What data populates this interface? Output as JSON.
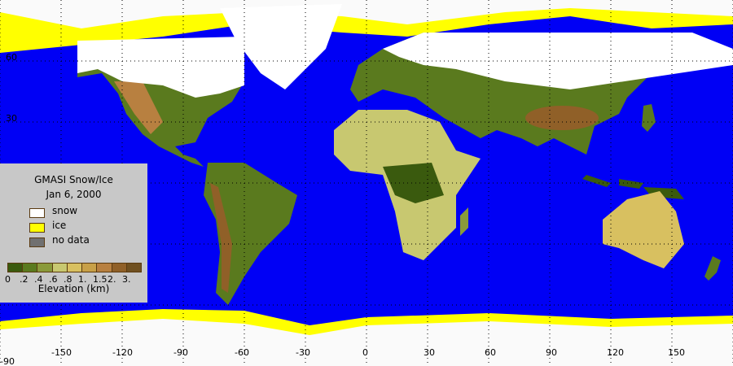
{
  "legend": {
    "title": "GMASI Snow/Ice",
    "date": "Jan  6, 2000",
    "items": [
      {
        "label": "snow",
        "color": "#ffffff"
      },
      {
        "label": "ice",
        "color": "#ffff00"
      },
      {
        "label": "no data",
        "color": "#707070"
      }
    ],
    "elevation_colors": [
      "#3a5a0e",
      "#5a7a1e",
      "#8a9a3a",
      "#c8c870",
      "#d8c060",
      "#c8a048",
      "#b88040",
      "#906028",
      "#705020"
    ],
    "elevation_labels": [
      "0",
      ".2",
      ".4",
      ".6",
      ".8",
      "1.",
      "1.5",
      "2.",
      "3."
    ],
    "elevation_title": "Elevation (km)"
  },
  "axes": {
    "longitude_labels": [
      "-150",
      "-120",
      "-90",
      "-60",
      "-30",
      "0",
      "30",
      "60",
      "90",
      "120",
      "150"
    ],
    "latitude_labels": [
      "60",
      "30"
    ],
    "corner_label": "-90"
  },
  "colors": {
    "ocean": "#0000f5",
    "snow": "#ffffff",
    "ice": "#ffff00"
  }
}
